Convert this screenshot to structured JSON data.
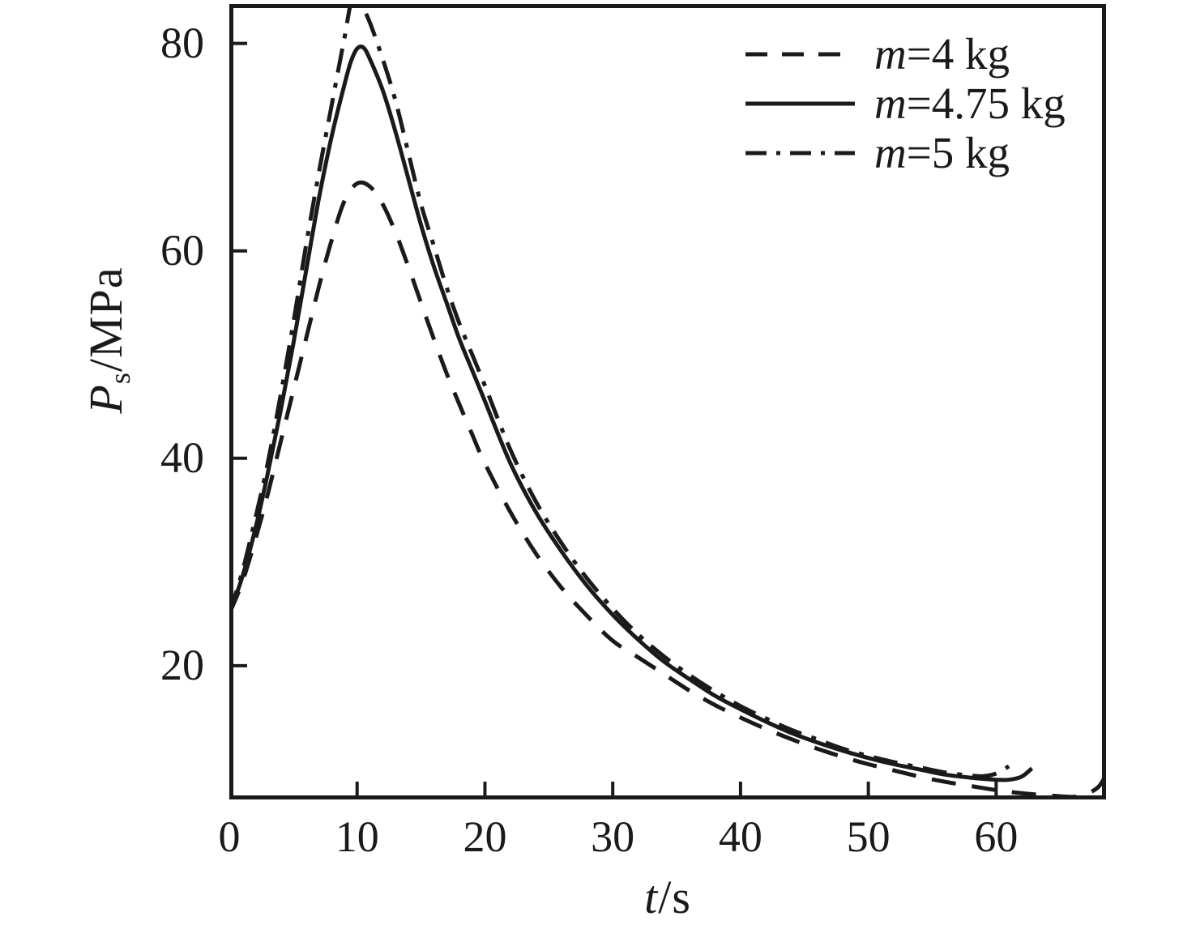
{
  "figure": {
    "background": "#ffffff",
    "ink": "#1a1a1a"
  },
  "chart_data": {
    "type": "line",
    "title": "",
    "xlabel": "t/s",
    "xlabel_var": "t",
    "xlabel_unit": "/s",
    "ylabel": "Ps/MPa",
    "ylabel_var": "P",
    "ylabel_sub": "s",
    "ylabel_unit": "/MPa",
    "xlim": [
      0,
      68.6
    ],
    "ylim": [
      7.1,
      83.8
    ],
    "x_ticks": [
      0,
      10,
      20,
      30,
      40,
      50,
      60
    ],
    "y_ticks": [
      20,
      40,
      60,
      80
    ],
    "grid": false,
    "legend_position": "top-right",
    "series": [
      {
        "name": "m=4 kg",
        "name_var": "m",
        "name_rest": "=4 kg",
        "style": "dashed",
        "points": [
          [
            0,
            25
          ],
          [
            1,
            28
          ],
          [
            2,
            32
          ],
          [
            3,
            36.5
          ],
          [
            4,
            41.5
          ],
          [
            5,
            46.5
          ],
          [
            6,
            51.5
          ],
          [
            7,
            56.5
          ],
          [
            8,
            61
          ],
          [
            9,
            64.8
          ],
          [
            10,
            66.5
          ],
          [
            11,
            66.2
          ],
          [
            12,
            64.5
          ],
          [
            13,
            61.8
          ],
          [
            14,
            58.5
          ],
          [
            15,
            55
          ],
          [
            16,
            51.5
          ],
          [
            17,
            48.2
          ],
          [
            18,
            45.2
          ],
          [
            19,
            42.3
          ],
          [
            20,
            39.5
          ],
          [
            22,
            34.8
          ],
          [
            24,
            30.8
          ],
          [
            26,
            27.5
          ],
          [
            28,
            24.8
          ],
          [
            30,
            22.4
          ],
          [
            32,
            20.8
          ],
          [
            34,
            19.2
          ],
          [
            36,
            17.6
          ],
          [
            38,
            16.2
          ],
          [
            40,
            15
          ],
          [
            42,
            13.9
          ],
          [
            44,
            12.9
          ],
          [
            46,
            12
          ],
          [
            48,
            11.2
          ],
          [
            50,
            10.5
          ],
          [
            52,
            9.9
          ],
          [
            54,
            9.3
          ],
          [
            56,
            8.8
          ],
          [
            58,
            8.4
          ],
          [
            60,
            8
          ],
          [
            62,
            7.7
          ],
          [
            64,
            7.5
          ],
          [
            66,
            7.35
          ],
          [
            67,
            7.6
          ],
          [
            68,
            8.3
          ],
          [
            68.6,
            9.5
          ]
        ]
      },
      {
        "name": "m=4.75 kg",
        "name_var": "m",
        "name_rest": "=4.75 kg",
        "style": "solid",
        "points": [
          [
            0,
            25
          ],
          [
            1,
            28.5
          ],
          [
            2,
            33
          ],
          [
            3,
            38.5
          ],
          [
            4,
            44.5
          ],
          [
            5,
            51
          ],
          [
            6,
            58
          ],
          [
            7,
            65
          ],
          [
            8,
            71
          ],
          [
            9,
            76
          ],
          [
            9.5,
            78.2
          ],
          [
            10,
            79.5
          ],
          [
            10.5,
            79.6
          ],
          [
            11,
            78.5
          ],
          [
            12,
            75.5
          ],
          [
            13,
            71.5
          ],
          [
            14,
            67
          ],
          [
            15,
            62.5
          ],
          [
            16,
            58.5
          ],
          [
            17,
            55
          ],
          [
            18,
            51.5
          ],
          [
            19,
            48.5
          ],
          [
            20,
            45.5
          ],
          [
            22,
            39.5
          ],
          [
            24,
            34.8
          ],
          [
            26,
            31
          ],
          [
            28,
            27.7
          ],
          [
            30,
            24.9
          ],
          [
            32,
            22.5
          ],
          [
            34,
            20.4
          ],
          [
            36,
            18.7
          ],
          [
            38,
            17.1
          ],
          [
            40,
            15.8
          ],
          [
            42,
            14.6
          ],
          [
            44,
            13.5
          ],
          [
            46,
            12.6
          ],
          [
            48,
            11.8
          ],
          [
            50,
            11.1
          ],
          [
            52,
            10.5
          ],
          [
            54,
            10
          ],
          [
            56,
            9.5
          ],
          [
            58,
            9.2
          ],
          [
            60,
            9
          ],
          [
            61,
            9
          ],
          [
            62,
            9.3
          ],
          [
            62.8,
            10.1
          ]
        ]
      },
      {
        "name": "m=5 kg",
        "name_var": "m",
        "name_rest": "=5 kg",
        "style": "dashdot",
        "points": [
          [
            0,
            25
          ],
          [
            1,
            29
          ],
          [
            2,
            34
          ],
          [
            3,
            39.5
          ],
          [
            4,
            46
          ],
          [
            5,
            53
          ],
          [
            6,
            60.5
          ],
          [
            7,
            67.5
          ],
          [
            8,
            74
          ],
          [
            9,
            80.5
          ],
          [
            9.6,
            84.3
          ],
          [
            10.2,
            84
          ],
          [
            11,
            82
          ],
          [
            12,
            78.5
          ],
          [
            13,
            74.5
          ],
          [
            14,
            69.5
          ],
          [
            15,
            64.5
          ],
          [
            16,
            60.5
          ],
          [
            17,
            56.5
          ],
          [
            18,
            53
          ],
          [
            19,
            50
          ],
          [
            20,
            47
          ],
          [
            22,
            40.8
          ],
          [
            24,
            35.8
          ],
          [
            26,
            31.8
          ],
          [
            28,
            28.4
          ],
          [
            30,
            25.5
          ],
          [
            32,
            23
          ],
          [
            34,
            20.9
          ],
          [
            36,
            19.1
          ],
          [
            38,
            17.5
          ],
          [
            40,
            16.1
          ],
          [
            42,
            14.9
          ],
          [
            44,
            13.8
          ],
          [
            46,
            12.9
          ],
          [
            48,
            12
          ],
          [
            50,
            11.3
          ],
          [
            52,
            10.7
          ],
          [
            54,
            10.2
          ],
          [
            56,
            9.7
          ],
          [
            58,
            9.4
          ],
          [
            59,
            9.35
          ],
          [
            60,
            9.6
          ],
          [
            61,
            10.3
          ]
        ]
      }
    ]
  }
}
